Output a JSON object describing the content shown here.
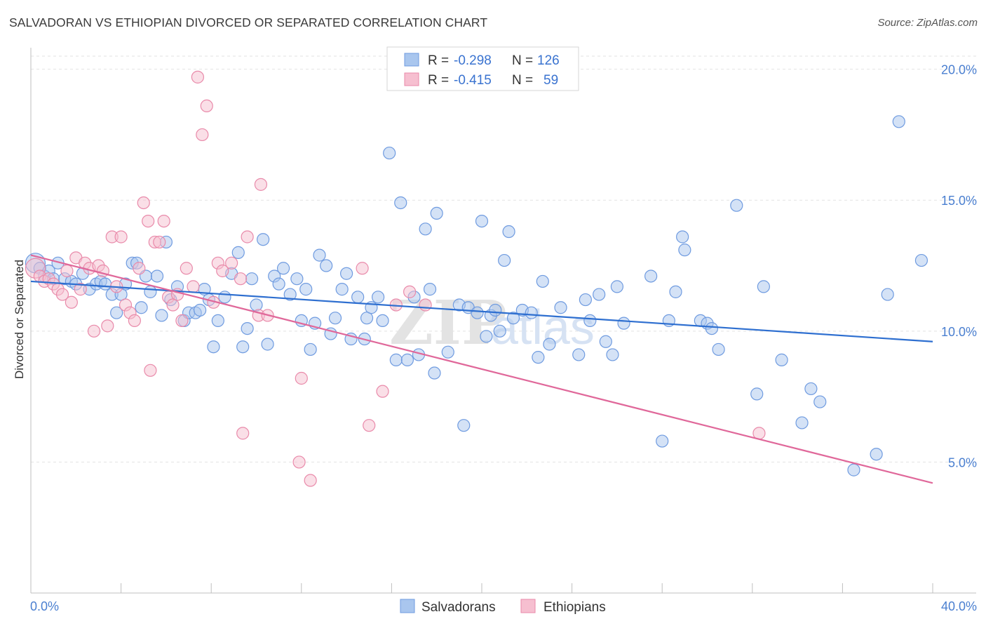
{
  "title": "SALVADORAN VS ETHIOPIAN DIVORCED OR SEPARATED CORRELATION CHART",
  "source": "Source: ZipAtlas.com",
  "watermark": {
    "zip": "ZIP",
    "atlas": "atlas"
  },
  "legend_box": {
    "rows": [
      {
        "r_label": "R =",
        "r_value": "-0.298",
        "n_label": "N =",
        "n_value": "126",
        "color": "#a9c6ee",
        "border": "#6f9be0"
      },
      {
        "r_label": "R =",
        "r_value": "-0.415",
        "n_label": "N =",
        "n_value": "59",
        "color": "#f6bfd0",
        "border": "#e98aaa"
      }
    ]
  },
  "chart_data": {
    "type": "scatter",
    "title": "SALVADORAN VS ETHIOPIAN DIVORCED OR SEPARATED CORRELATION CHART",
    "xlabel": "",
    "ylabel": "Divorced or Separated",
    "xlim": [
      0,
      40
    ],
    "ylim": [
      0,
      21
    ],
    "x_tick_labels": [
      {
        "value": 0,
        "label": "0.0%"
      },
      {
        "value": 40,
        "label": "40.0%"
      }
    ],
    "y_tick_labels": [
      {
        "value": 5,
        "label": "5.0%"
      },
      {
        "value": 10,
        "label": "10.0%"
      },
      {
        "value": 15,
        "label": "15.0%"
      },
      {
        "value": 20,
        "label": "20.0%"
      }
    ],
    "grid": true,
    "legend_placement": "bottom-center",
    "series": [
      {
        "name": "Salvadorans",
        "color": "#a9c6ee",
        "edge": "#6f9be0",
        "line_color": "#2e6fd0",
        "trend": {
          "x": [
            0,
            40
          ],
          "y": [
            11.9,
            9.6
          ]
        },
        "points": [
          [
            0.2,
            12.6
          ],
          [
            0.4,
            12.4
          ],
          [
            0.6,
            12.1
          ],
          [
            0.8,
            12.3
          ],
          [
            1.0,
            12.0
          ],
          [
            1.2,
            12.6
          ],
          [
            1.5,
            12.0
          ],
          [
            1.8,
            11.9
          ],
          [
            2.0,
            11.8
          ],
          [
            2.3,
            12.2
          ],
          [
            2.6,
            11.6
          ],
          [
            2.9,
            11.8
          ],
          [
            3.1,
            11.9
          ],
          [
            3.3,
            11.8
          ],
          [
            3.6,
            11.4
          ],
          [
            3.8,
            10.7
          ],
          [
            4.0,
            11.4
          ],
          [
            4.2,
            11.8
          ],
          [
            4.5,
            12.6
          ],
          [
            4.7,
            12.6
          ],
          [
            4.9,
            10.9
          ],
          [
            5.1,
            12.1
          ],
          [
            5.3,
            11.5
          ],
          [
            5.6,
            12.1
          ],
          [
            5.8,
            10.6
          ],
          [
            6.0,
            13.4
          ],
          [
            6.2,
            11.2
          ],
          [
            6.5,
            11.7
          ],
          [
            6.8,
            10.4
          ],
          [
            7.0,
            10.7
          ],
          [
            7.3,
            10.7
          ],
          [
            7.5,
            10.8
          ],
          [
            7.7,
            11.6
          ],
          [
            7.9,
            11.2
          ],
          [
            8.1,
            9.4
          ],
          [
            8.3,
            10.4
          ],
          [
            8.6,
            11.3
          ],
          [
            8.9,
            12.2
          ],
          [
            9.2,
            13.0
          ],
          [
            9.4,
            9.4
          ],
          [
            9.6,
            10.1
          ],
          [
            9.8,
            12.0
          ],
          [
            10.0,
            11.0
          ],
          [
            10.3,
            13.5
          ],
          [
            10.5,
            9.5
          ],
          [
            10.8,
            12.1
          ],
          [
            11.0,
            11.8
          ],
          [
            11.2,
            12.4
          ],
          [
            11.5,
            11.4
          ],
          [
            11.8,
            12.0
          ],
          [
            12.0,
            10.4
          ],
          [
            12.2,
            11.6
          ],
          [
            12.4,
            9.3
          ],
          [
            12.6,
            10.3
          ],
          [
            12.8,
            12.9
          ],
          [
            13.1,
            12.5
          ],
          [
            13.3,
            9.9
          ],
          [
            13.5,
            10.5
          ],
          [
            13.8,
            11.6
          ],
          [
            14.0,
            12.2
          ],
          [
            14.2,
            9.7
          ],
          [
            14.5,
            11.3
          ],
          [
            14.8,
            9.7
          ],
          [
            14.9,
            10.5
          ],
          [
            15.1,
            10.9
          ],
          [
            15.4,
            11.3
          ],
          [
            15.6,
            10.4
          ],
          [
            15.9,
            16.8
          ],
          [
            16.2,
            8.9
          ],
          [
            16.4,
            14.9
          ],
          [
            16.7,
            8.9
          ],
          [
            17.0,
            11.3
          ],
          [
            17.2,
            9.1
          ],
          [
            17.5,
            13.9
          ],
          [
            17.7,
            11.6
          ],
          [
            17.9,
            8.4
          ],
          [
            18.0,
            14.5
          ],
          [
            18.5,
            9.2
          ],
          [
            19.0,
            11.0
          ],
          [
            19.2,
            6.4
          ],
          [
            19.4,
            10.9
          ],
          [
            19.8,
            10.7
          ],
          [
            20.0,
            14.2
          ],
          [
            20.2,
            9.8
          ],
          [
            20.4,
            10.6
          ],
          [
            20.6,
            10.8
          ],
          [
            20.8,
            10.0
          ],
          [
            21.0,
            12.7
          ],
          [
            21.2,
            13.8
          ],
          [
            21.4,
            10.5
          ],
          [
            21.8,
            10.8
          ],
          [
            22.2,
            10.7
          ],
          [
            22.5,
            9.0
          ],
          [
            22.7,
            11.9
          ],
          [
            23.0,
            9.5
          ],
          [
            23.5,
            10.9
          ],
          [
            24.3,
            9.1
          ],
          [
            24.6,
            11.2
          ],
          [
            24.8,
            10.4
          ],
          [
            25.2,
            11.4
          ],
          [
            25.5,
            9.6
          ],
          [
            25.8,
            9.1
          ],
          [
            26.0,
            11.7
          ],
          [
            26.3,
            10.3
          ],
          [
            27.5,
            12.1
          ],
          [
            28.0,
            5.8
          ],
          [
            28.3,
            10.4
          ],
          [
            28.6,
            11.5
          ],
          [
            28.9,
            13.6
          ],
          [
            29.0,
            13.1
          ],
          [
            29.7,
            10.4
          ],
          [
            30.0,
            10.3
          ],
          [
            30.2,
            10.1
          ],
          [
            30.5,
            9.3
          ],
          [
            31.3,
            14.8
          ],
          [
            32.2,
            7.6
          ],
          [
            32.5,
            11.7
          ],
          [
            33.3,
            8.9
          ],
          [
            34.2,
            6.5
          ],
          [
            34.6,
            7.8
          ],
          [
            35.0,
            7.3
          ],
          [
            36.5,
            4.7
          ],
          [
            37.5,
            5.3
          ],
          [
            38.0,
            11.4
          ],
          [
            38.5,
            18.0
          ],
          [
            39.5,
            12.7
          ]
        ]
      },
      {
        "name": "Ethiopians",
        "color": "#f6bfd0",
        "edge": "#e98aaa",
        "line_color": "#e0689a",
        "trend": {
          "x": [
            0,
            40
          ],
          "y": [
            12.9,
            4.2
          ]
        },
        "points": [
          [
            0.2,
            12.4
          ],
          [
            0.4,
            12.1
          ],
          [
            0.6,
            11.9
          ],
          [
            0.8,
            12.0
          ],
          [
            1.0,
            11.8
          ],
          [
            1.2,
            11.6
          ],
          [
            1.4,
            11.4
          ],
          [
            1.6,
            12.3
          ],
          [
            1.8,
            11.1
          ],
          [
            2.0,
            12.8
          ],
          [
            2.2,
            11.6
          ],
          [
            2.4,
            12.6
          ],
          [
            2.6,
            12.4
          ],
          [
            2.8,
            10.0
          ],
          [
            3.0,
            12.5
          ],
          [
            3.2,
            12.3
          ],
          [
            3.4,
            10.2
          ],
          [
            3.6,
            13.6
          ],
          [
            3.8,
            11.7
          ],
          [
            4.0,
            13.6
          ],
          [
            4.2,
            11.0
          ],
          [
            4.4,
            10.7
          ],
          [
            4.6,
            10.4
          ],
          [
            4.8,
            12.4
          ],
          [
            5.0,
            14.9
          ],
          [
            5.2,
            14.2
          ],
          [
            5.3,
            8.5
          ],
          [
            5.5,
            13.4
          ],
          [
            5.7,
            13.4
          ],
          [
            5.9,
            14.2
          ],
          [
            6.1,
            11.3
          ],
          [
            6.3,
            11.0
          ],
          [
            6.5,
            11.4
          ],
          [
            6.7,
            10.4
          ],
          [
            6.9,
            12.4
          ],
          [
            7.2,
            11.7
          ],
          [
            7.4,
            19.7
          ],
          [
            7.6,
            17.5
          ],
          [
            7.8,
            18.6
          ],
          [
            8.1,
            11.1
          ],
          [
            8.3,
            12.6
          ],
          [
            8.5,
            12.3
          ],
          [
            8.9,
            12.6
          ],
          [
            9.3,
            12.0
          ],
          [
            9.4,
            6.1
          ],
          [
            9.6,
            13.6
          ],
          [
            10.1,
            10.6
          ],
          [
            10.2,
            15.6
          ],
          [
            10.5,
            10.6
          ],
          [
            11.9,
            5.0
          ],
          [
            12.0,
            8.2
          ],
          [
            12.4,
            4.3
          ],
          [
            14.7,
            12.4
          ],
          [
            15.0,
            6.4
          ],
          [
            15.6,
            7.7
          ],
          [
            16.2,
            11.0
          ],
          [
            16.8,
            11.5
          ],
          [
            17.5,
            11.0
          ],
          [
            32.3,
            6.1
          ]
        ]
      }
    ]
  },
  "bottom_legend": [
    {
      "label": "Salvadorans",
      "color": "#a9c6ee",
      "border": "#6f9be0"
    },
    {
      "label": "Ethiopians",
      "color": "#f6bfd0",
      "border": "#e98aaa"
    }
  ]
}
